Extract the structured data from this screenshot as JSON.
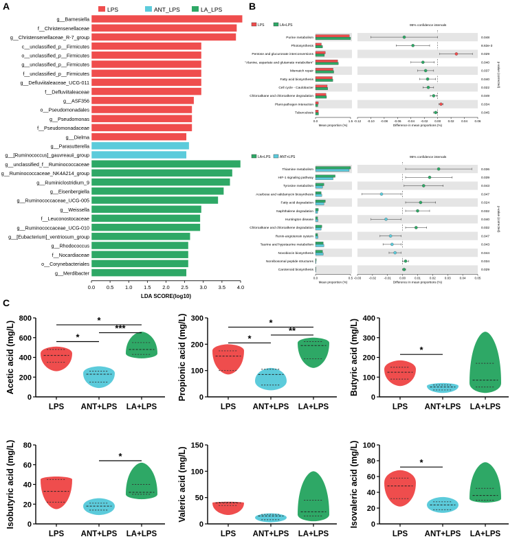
{
  "panel_labels": {
    "a": "A",
    "b": "B",
    "c": "C"
  },
  "colors": {
    "red": "#ef4d4d",
    "cyan": "#5ccbdb",
    "green": "#2ea866",
    "gray_band": "#e5e5e5",
    "black": "#000000"
  },
  "chart_data": [
    {
      "id": "lda",
      "type": "bar",
      "orientation": "horizontal",
      "xlabel": "LDA SCORE(log10)",
      "xlim": [
        0,
        4.0
      ],
      "xticks": [
        "0.0",
        "0.5",
        "1.0",
        "1.5",
        "2.0",
        "2.5",
        "3.0",
        "3.5",
        "4.0"
      ],
      "legend": [
        {
          "name": "LPS",
          "color": "#ef4d4d"
        },
        {
          "name": "ANT_LPS",
          "color": "#5ccbdb"
        },
        {
          "name": "LA_LPS",
          "color": "#2ea866"
        }
      ],
      "bars": [
        {
          "label": "g__Barnesiella",
          "value": 4.05,
          "group": "LPS"
        },
        {
          "label": "f__Christensenellaceae",
          "value": 3.9,
          "group": "LPS"
        },
        {
          "label": "g__Christensenellaceae_R-7_group",
          "value": 3.88,
          "group": "LPS"
        },
        {
          "label": "c__unclassified_p__Firmicutes",
          "value": 2.95,
          "group": "LPS"
        },
        {
          "label": "o__unclassified_p__Firmicutes",
          "value": 2.95,
          "group": "LPS"
        },
        {
          "label": "g__unclassified_p__Firmicutes",
          "value": 2.95,
          "group": "LPS"
        },
        {
          "label": "f__unclassified_p__Firmicutes",
          "value": 2.95,
          "group": "LPS"
        },
        {
          "label": "g__Defluviitaleaceae_UCG-011",
          "value": 2.95,
          "group": "LPS"
        },
        {
          "label": "f__Defluviitaleaceae",
          "value": 2.95,
          "group": "LPS"
        },
        {
          "label": "g__ASF356",
          "value": 2.75,
          "group": "LPS"
        },
        {
          "label": "o__Pseudomonadales",
          "value": 2.7,
          "group": "LPS"
        },
        {
          "label": "g__Pseudomonas",
          "value": 2.7,
          "group": "LPS"
        },
        {
          "label": "f__Pseudomonadaceae",
          "value": 2.7,
          "group": "LPS"
        },
        {
          "label": "g__Dielma",
          "value": 2.55,
          "group": "LPS"
        },
        {
          "label": "g__Parasutterella",
          "value": 2.62,
          "group": "ANT_LPS"
        },
        {
          "label": "g__[Ruminococcus]_gauvreauii_group",
          "value": 2.55,
          "group": "ANT_LPS"
        },
        {
          "label": "g__unclassified_f__Ruminococcaceae",
          "value": 4.0,
          "group": "LA_LPS"
        },
        {
          "label": "g__Ruminococcaceae_NK4A214_group",
          "value": 3.78,
          "group": "LA_LPS"
        },
        {
          "label": "g__Ruminiclostridium_9",
          "value": 3.72,
          "group": "LA_LPS"
        },
        {
          "label": "g__Eisenbergiella",
          "value": 3.55,
          "group": "LA_LPS"
        },
        {
          "label": "g__Ruminococcaceae_UCG-005",
          "value": 3.4,
          "group": "LA_LPS"
        },
        {
          "label": "g__Weissella",
          "value": 2.95,
          "group": "LA_LPS"
        },
        {
          "label": "f__Leuconostocaceae",
          "value": 2.92,
          "group": "LA_LPS"
        },
        {
          "label": "g__Ruminococcaceae_UCG-010",
          "value": 2.92,
          "group": "LA_LPS"
        },
        {
          "label": "g__[Eubacterium]_ventriosum_group",
          "value": 2.65,
          "group": "LA_LPS"
        },
        {
          "label": "g__Rhodococcus",
          "value": 2.6,
          "group": "LA_LPS"
        },
        {
          "label": "f__Nocardiaceae",
          "value": 2.6,
          "group": "LA_LPS"
        },
        {
          "label": "o__Corynebacteriales",
          "value": 2.6,
          "group": "LA_LPS"
        },
        {
          "label": "g__Merdibacter",
          "value": 2.55,
          "group": "LA_LPS"
        }
      ]
    },
    {
      "id": "pathway1",
      "type": "bar",
      "subtype": "extended_error_bar",
      "legend": [
        {
          "name": "LPS",
          "color": "#ef4d4d"
        },
        {
          "name": "LA+LPS",
          "color": "#2ea866"
        }
      ],
      "ci_title": "95% confidence intervals",
      "xlabel_left": "Mean proportion (%)",
      "xlabel_right": "Difference in mean proportions (%)",
      "ylabel_right": "p-value (corrected)",
      "left_xlim": [
        0,
        1.5
      ],
      "left_ticks": [
        "0.0",
        "1.5"
      ],
      "right_xlim": [
        -0.12,
        0.06
      ],
      "right_ticks": [
        "-0.12",
        "-0.10",
        "-0.08",
        "-0.06",
        "-0.04",
        "-0.02",
        "0.00",
        "0.02",
        "0.04",
        "0.06"
      ],
      "rows": [
        {
          "name": "Purine metabolism",
          "a": 1.45,
          "b": 1.5,
          "diff": -0.05,
          "lo": -0.1,
          "hi": 0.0,
          "p": "0.048",
          "fav": "b"
        },
        {
          "name": "Photosynthesis",
          "a": 0.25,
          "b": 0.3,
          "diff": -0.037,
          "lo": -0.062,
          "hi": -0.012,
          "p": "8.63e-3",
          "fav": "b"
        },
        {
          "name": "Pentose and glucuronate interconversions",
          "a": 0.42,
          "b": 0.38,
          "diff": 0.028,
          "lo": 0.003,
          "hi": 0.052,
          "p": "0.029",
          "fav": "a"
        },
        {
          "name": "\"Alanine, aspartate and glutamate metabolism\"",
          "a": 0.95,
          "b": 0.98,
          "diff": -0.022,
          "lo": -0.04,
          "hi": -0.005,
          "p": "0.040",
          "fav": "b"
        },
        {
          "name": "Mismatch repair",
          "a": 0.75,
          "b": 0.78,
          "diff": -0.018,
          "lo": -0.03,
          "hi": -0.006,
          "p": "0.037",
          "fav": "b"
        },
        {
          "name": "Fatty acid biosynthesis",
          "a": 0.72,
          "b": 0.74,
          "diff": -0.015,
          "lo": -0.027,
          "hi": -0.003,
          "p": "0.040",
          "fav": "b"
        },
        {
          "name": "Cell cycle - Caulobacter",
          "a": 0.5,
          "b": 0.52,
          "diff": -0.014,
          "lo": -0.022,
          "hi": -0.006,
          "p": "0.022",
          "fav": "b"
        },
        {
          "name": "Chloroalkane and chloroalkene degradation",
          "a": 0.45,
          "b": 0.47,
          "diff": -0.006,
          "lo": -0.011,
          "hi": -0.001,
          "p": "0.049",
          "fav": "b"
        },
        {
          "name": "Plant-pathogen interaction",
          "a": 0.12,
          "b": 0.1,
          "diff": 0.005,
          "lo": 0.002,
          "hi": 0.008,
          "p": "0.034",
          "fav": "a"
        },
        {
          "name": "Tuberculosis",
          "a": 0.12,
          "b": 0.13,
          "diff": -0.003,
          "lo": -0.006,
          "hi": 0.0,
          "p": "0.045",
          "fav": "b"
        }
      ]
    },
    {
      "id": "pathway2",
      "type": "bar",
      "subtype": "extended_error_bar",
      "legend": [
        {
          "name": "LA+LPS",
          "color": "#2ea866"
        },
        {
          "name": "ANT+LPS",
          "color": "#5ccbdb"
        }
      ],
      "ci_title": "95% confidence intervals",
      "xlabel_left": "Mean proportion (%)",
      "xlabel_right": "Difference in mean proportions (%)",
      "ylabel_right": "p-value (corrected)",
      "left_xlim": [
        0,
        0.5
      ],
      "left_ticks": [
        "0.0",
        "0.5"
      ],
      "right_xlim": [
        -0.03,
        0.05
      ],
      "right_ticks": [
        "-0.03",
        "-0.02",
        "-0.01",
        "0.00",
        "0.01",
        "0.02",
        "0.03",
        "0.04",
        "0.05"
      ],
      "rows": [
        {
          "name": "Thiamine metabolism",
          "a": 0.5,
          "b": 0.48,
          "diff": 0.024,
          "lo": 0.002,
          "hi": 0.046,
          "p": "0.036",
          "fav": "a"
        },
        {
          "name": "HIF-1 signaling pathway",
          "a": 0.28,
          "b": 0.25,
          "diff": 0.018,
          "lo": 0.002,
          "hi": 0.033,
          "p": "0.039",
          "fav": "a"
        },
        {
          "name": "Tyrosine metabolism",
          "a": 0.12,
          "b": 0.1,
          "diff": 0.014,
          "lo": 0.001,
          "hi": 0.027,
          "p": "0.043",
          "fav": "a"
        },
        {
          "name": "Acarbose and validamycin biosynthesis",
          "a": 0.08,
          "b": 0.09,
          "diff": -0.014,
          "lo": -0.027,
          "hi": -0.001,
          "p": "0.047",
          "fav": "b"
        },
        {
          "name": "Fatty acid degradation",
          "a": 0.14,
          "b": 0.12,
          "diff": 0.012,
          "lo": 0.002,
          "hi": 0.022,
          "p": "0.024",
          "fav": "a"
        },
        {
          "name": "Naphthalene degradation",
          "a": 0.04,
          "b": 0.03,
          "diff": 0.01,
          "lo": 0.002,
          "hi": 0.018,
          "p": "0.032",
          "fav": "a"
        },
        {
          "name": "Huntington disease",
          "a": 0.03,
          "b": 0.035,
          "diff": -0.011,
          "lo": -0.021,
          "hi": -0.001,
          "p": "0.040",
          "fav": "b"
        },
        {
          "name": "Chloroalkane and chloroalkene degradation",
          "a": 0.09,
          "b": 0.08,
          "diff": 0.009,
          "lo": 0.002,
          "hi": 0.016,
          "p": "0.032",
          "fav": "a"
        },
        {
          "name": "Renin-angiotensin system",
          "a": 0.03,
          "b": 0.035,
          "diff": -0.008,
          "lo": -0.015,
          "hi": -0.001,
          "p": "0.047",
          "fav": "b"
        },
        {
          "name": "Taurine and hypotaurine metabolism",
          "a": 0.11,
          "b": 0.12,
          "diff": -0.007,
          "lo": -0.013,
          "hi": -0.001,
          "p": "0.043",
          "fav": "b"
        },
        {
          "name": "Novobiocin biosynthesis",
          "a": 0.1,
          "b": 0.11,
          "diff": -0.005,
          "lo": -0.009,
          "hi": -0.001,
          "p": "0.044",
          "fav": "b"
        },
        {
          "name": "Nonribosomal peptide structures",
          "a": 0.01,
          "b": 0.008,
          "diff": 0.002,
          "lo": 0.0,
          "hi": 0.004,
          "p": "0.034",
          "fav": "a"
        },
        {
          "name": "Carotenoid biosynthesis",
          "a": 0.005,
          "b": 0.005,
          "diff": 0.001,
          "lo": 0.0,
          "hi": 0.002,
          "p": "0.029",
          "fav": "a"
        }
      ]
    },
    {
      "id": "violin-acetic",
      "type": "scatter",
      "subtype": "violin",
      "ylabel": "Acetic acid (mg/L)",
      "ylim": [
        0,
        800
      ],
      "yticks": [
        "0",
        "200",
        "400",
        "600",
        "800"
      ],
      "categories": [
        "LPS",
        "ANT+LPS",
        "LA+LPS"
      ],
      "series": [
        {
          "name": "LPS",
          "color": "#ef4d4d",
          "min": 260,
          "q1": 350,
          "median": 420,
          "q3": 480,
          "max": 510,
          "mode": 440
        },
        {
          "name": "ANT+LPS",
          "color": "#5ccbdb",
          "min": 90,
          "q1": 150,
          "median": 230,
          "q3": 260,
          "max": 310,
          "mode": 240
        },
        {
          "name": "LA+LPS",
          "color": "#2ea866",
          "min": 390,
          "q1": 430,
          "median": 480,
          "q3": 550,
          "max": 660,
          "mode": 440
        }
      ],
      "significance": [
        {
          "from": 0,
          "to": 1,
          "label": "*",
          "y": 560
        },
        {
          "from": 1,
          "to": 2,
          "label": "***",
          "y": 650
        },
        {
          "from": 0,
          "to": 2,
          "label": "*",
          "y": 730
        }
      ]
    },
    {
      "id": "violin-propionic",
      "type": "scatter",
      "subtype": "violin",
      "ylabel": "Propionic acid (mg/L)",
      "ylim": [
        0,
        300
      ],
      "yticks": [
        "0",
        "100",
        "200",
        "300"
      ],
      "categories": [
        "LPS",
        "ANT+LPS",
        "LA+LPS"
      ],
      "series": [
        {
          "name": "LPS",
          "color": "#ef4d4d",
          "min": 85,
          "q1": 100,
          "median": 155,
          "q3": 175,
          "max": 200,
          "mode": 175
        },
        {
          "name": "ANT+LPS",
          "color": "#5ccbdb",
          "min": 25,
          "q1": 45,
          "median": 85,
          "q3": 105,
          "max": 110,
          "mode": 60
        },
        {
          "name": "LA+LPS",
          "color": "#2ea866",
          "min": 110,
          "q1": 145,
          "median": 195,
          "q3": 210,
          "max": 225,
          "mode": 205
        }
      ],
      "significance": [
        {
          "from": 0,
          "to": 1,
          "label": "*",
          "y": 205
        },
        {
          "from": 1,
          "to": 2,
          "label": "**",
          "y": 235
        },
        {
          "from": 0,
          "to": 2,
          "label": "*",
          "y": 265
        }
      ]
    },
    {
      "id": "violin-butyric",
      "type": "scatter",
      "subtype": "violin",
      "ylabel": "Butyric acid (mg/L)",
      "ylim": [
        0,
        400
      ],
      "yticks": [
        "0",
        "100",
        "200",
        "300",
        "400"
      ],
      "categories": [
        "LPS",
        "ANT+LPS",
        "LA+LPS"
      ],
      "series": [
        {
          "name": "LPS",
          "color": "#ef4d4d",
          "min": 55,
          "q1": 90,
          "median": 125,
          "q3": 150,
          "max": 185,
          "mode": 140
        },
        {
          "name": "ANT+LPS",
          "color": "#5ccbdb",
          "min": 20,
          "q1": 35,
          "median": 50,
          "q3": 60,
          "max": 70,
          "mode": 55
        },
        {
          "name": "LA+LPS",
          "color": "#2ea866",
          "min": 20,
          "q1": 50,
          "median": 85,
          "q3": 170,
          "max": 330,
          "mode": 70
        }
      ],
      "significance": [
        {
          "from": 0,
          "to": 1,
          "label": "*",
          "y": 215
        }
      ]
    },
    {
      "id": "violin-isobutyric",
      "type": "scatter",
      "subtype": "violin",
      "ylabel": "Isobutyric acid (mg/L)",
      "ylim": [
        0,
        80
      ],
      "yticks": [
        "0",
        "20",
        "40",
        "60",
        "80"
      ],
      "categories": [
        "LPS",
        "ANT+LPS",
        "LA+LPS"
      ],
      "series": [
        {
          "name": "LPS",
          "color": "#ef4d4d",
          "min": 15,
          "q1": 22,
          "median": 33,
          "q3": 45,
          "max": 48,
          "mode": 45
        },
        {
          "name": "ANT+LPS",
          "color": "#5ccbdb",
          "min": 9,
          "q1": 14,
          "median": 18,
          "q3": 21,
          "max": 26,
          "mode": 18
        },
        {
          "name": "LA+LPS",
          "color": "#2ea866",
          "min": 25,
          "q1": 30,
          "median": 32,
          "q3": 40,
          "max": 62,
          "mode": 30
        }
      ],
      "significance": [
        {
          "from": 1,
          "to": 2,
          "label": "*",
          "y": 64
        }
      ]
    },
    {
      "id": "violin-valeric",
      "type": "scatter",
      "subtype": "violin",
      "ylabel": "Valeric acid (mg/L)",
      "ylim": [
        0,
        150
      ],
      "yticks": [
        "0",
        "50",
        "100",
        "150"
      ],
      "categories": [
        "LPS",
        "ANT+LPS",
        "LA+LPS"
      ],
      "series": [
        {
          "name": "LPS",
          "color": "#ef4d4d",
          "min": 17,
          "q1": 35,
          "median": 40,
          "q3": 41,
          "max": 42,
          "mode": 40
        },
        {
          "name": "ANT+LPS",
          "color": "#5ccbdb",
          "min": 3,
          "q1": 8,
          "median": 15,
          "q3": 18,
          "max": 20,
          "mode": 12
        },
        {
          "name": "LA+LPS",
          "color": "#2ea866",
          "min": 5,
          "q1": 15,
          "median": 23,
          "q3": 45,
          "max": 100,
          "mode": 18
        }
      ],
      "significance": []
    },
    {
      "id": "violin-isovaleric",
      "type": "scatter",
      "subtype": "violin",
      "ylabel": "Isovaleric acid (mg/L)",
      "ylim": [
        0,
        100
      ],
      "yticks": [
        "0",
        "20",
        "40",
        "60",
        "80",
        "100"
      ],
      "categories": [
        "LPS",
        "ANT+LPS",
        "LA+LPS"
      ],
      "series": [
        {
          "name": "LPS",
          "color": "#ef4d4d",
          "min": 22,
          "q1": 32,
          "median": 48,
          "q3": 58,
          "max": 68,
          "mode": 52
        },
        {
          "name": "ANT+LPS",
          "color": "#5ccbdb",
          "min": 14,
          "q1": 18,
          "median": 24,
          "q3": 28,
          "max": 34,
          "mode": 24
        },
        {
          "name": "LA+LPS",
          "color": "#2ea866",
          "min": 27,
          "q1": 30,
          "median": 36,
          "q3": 45,
          "max": 78,
          "mode": 32
        }
      ],
      "significance": [
        {
          "from": 0,
          "to": 1,
          "label": "*",
          "y": 72
        }
      ]
    }
  ]
}
